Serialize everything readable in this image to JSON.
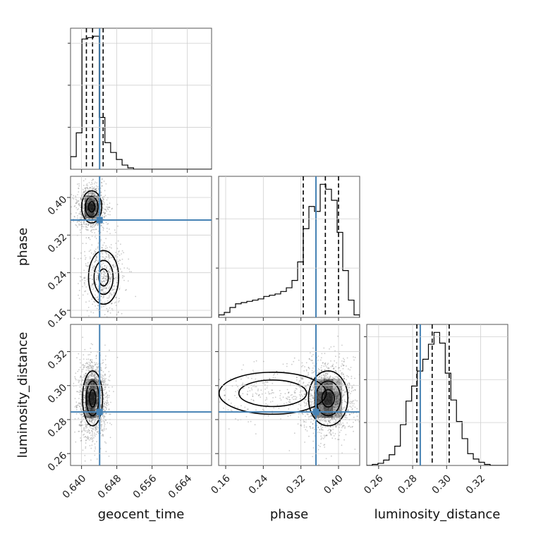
{
  "chart_data": {
    "type": "corner",
    "parameters": [
      "geocent_time",
      "phase",
      "luminosity_distance"
    ],
    "axis_labels": {
      "geocent_time": "geocent_time",
      "phase": "phase",
      "luminosity_distance": "luminosity_distance"
    },
    "ranges": {
      "geocent_time": [
        0.6375,
        0.6695
      ],
      "phase": [
        0.145,
        0.445
      ],
      "luminosity_distance": [
        0.253,
        0.336
      ]
    },
    "ticks": {
      "geocent_time": [
        0.64,
        0.648,
        0.656,
        0.664
      ],
      "phase": [
        0.16,
        0.24,
        0.32,
        0.4
      ],
      "luminosity_distance": [
        0.26,
        0.28,
        0.3,
        0.32
      ]
    },
    "tick_labels": {
      "geocent_time": [
        "0.640",
        "0.648",
        "0.656",
        "0.664"
      ],
      "phase": [
        "0.16",
        "0.24",
        "0.32",
        "0.40"
      ],
      "luminosity_distance": [
        "0.26",
        "0.28",
        "0.30",
        "0.32"
      ]
    },
    "truths": {
      "geocent_time": 0.6441,
      "phase": 0.352,
      "luminosity_distance": 0.2845
    },
    "quantiles": {
      "geocent_time": [
        0.6411,
        0.6425,
        0.6449
      ],
      "phase": [
        0.325,
        0.372,
        0.4
      ],
      "luminosity_distance": [
        0.2825,
        0.2915,
        0.3015
      ]
    },
    "histograms": {
      "geocent_time": {
        "edges": [
          0.6375,
          0.6388,
          0.6401,
          0.6414,
          0.6427,
          0.644,
          0.6453,
          0.6466,
          0.6479,
          0.6492,
          0.6505,
          0.6518,
          0.6531,
          0.6544,
          0.6557,
          0.657,
          0.6583,
          0.6596,
          0.6609,
          0.6622,
          0.6635,
          0.6648,
          0.6661,
          0.6674,
          0.6687,
          0.6695
        ],
        "counts": [
          9,
          26,
          93,
          94,
          95,
          37,
          19,
          12,
          7,
          3,
          1,
          0,
          0,
          0,
          0,
          0,
          0,
          0,
          0,
          0,
          0,
          0,
          0,
          0,
          0
        ]
      },
      "phase": {
        "edges": [
          0.145,
          0.157,
          0.169,
          0.181,
          0.193,
          0.205,
          0.217,
          0.229,
          0.241,
          0.253,
          0.265,
          0.277,
          0.289,
          0.301,
          0.313,
          0.325,
          0.337,
          0.349,
          0.361,
          0.373,
          0.385,
          0.397,
          0.409,
          0.421,
          0.433,
          0.445
        ],
        "counts": [
          2,
          4,
          8,
          11,
          12,
          13,
          14,
          15,
          17,
          18,
          19,
          21,
          24,
          30,
          45,
          72,
          90,
          86,
          108,
          104,
          95,
          69,
          38,
          14,
          2
        ]
      },
      "luminosity_distance": {
        "edges": [
          0.253,
          0.2563,
          0.2596,
          0.2629,
          0.2662,
          0.2695,
          0.2728,
          0.2761,
          0.2794,
          0.2827,
          0.286,
          0.2893,
          0.2926,
          0.2959,
          0.2992,
          0.3025,
          0.3058,
          0.3091,
          0.3124,
          0.3157,
          0.319,
          0.3223,
          0.3256,
          0.3289,
          0.3322,
          0.336
        ],
        "counts": [
          0,
          1,
          2,
          5,
          10,
          18,
          38,
          60,
          74,
          88,
          99,
          113,
          124,
          114,
          86,
          61,
          41,
          25,
          11,
          6,
          3,
          1,
          0,
          0,
          0
        ]
      }
    },
    "density_2d": [
      {
        "x": "geocent_time",
        "y": "phase",
        "modes": [
          {
            "x": 0.6423,
            "y": 0.38,
            "sx": 0.0012,
            "sy": 0.018,
            "weight": 0.65
          },
          {
            "x": 0.645,
            "y": 0.23,
            "sx": 0.0018,
            "sy": 0.03,
            "weight": 0.35
          }
        ]
      },
      {
        "x": "geocent_time",
        "y": "luminosity_distance",
        "modes": [
          {
            "x": 0.6425,
            "y": 0.2925,
            "sx": 0.0012,
            "sy": 0.0085,
            "weight": 1.0
          }
        ]
      },
      {
        "x": "phase",
        "y": "luminosity_distance",
        "modes": [
          {
            "x": 0.378,
            "y": 0.2925,
            "sx": 0.022,
            "sy": 0.0085,
            "weight": 0.8
          },
          {
            "x": 0.26,
            "y": 0.2955,
            "sx": 0.06,
            "sy": 0.0065,
            "weight": 0.2
          }
        ]
      }
    ],
    "colors": {
      "truth": "#4682b4",
      "hist": "#000000",
      "grid": "#cfcfcf",
      "points": "#6b6b6b"
    },
    "grid": true
  }
}
